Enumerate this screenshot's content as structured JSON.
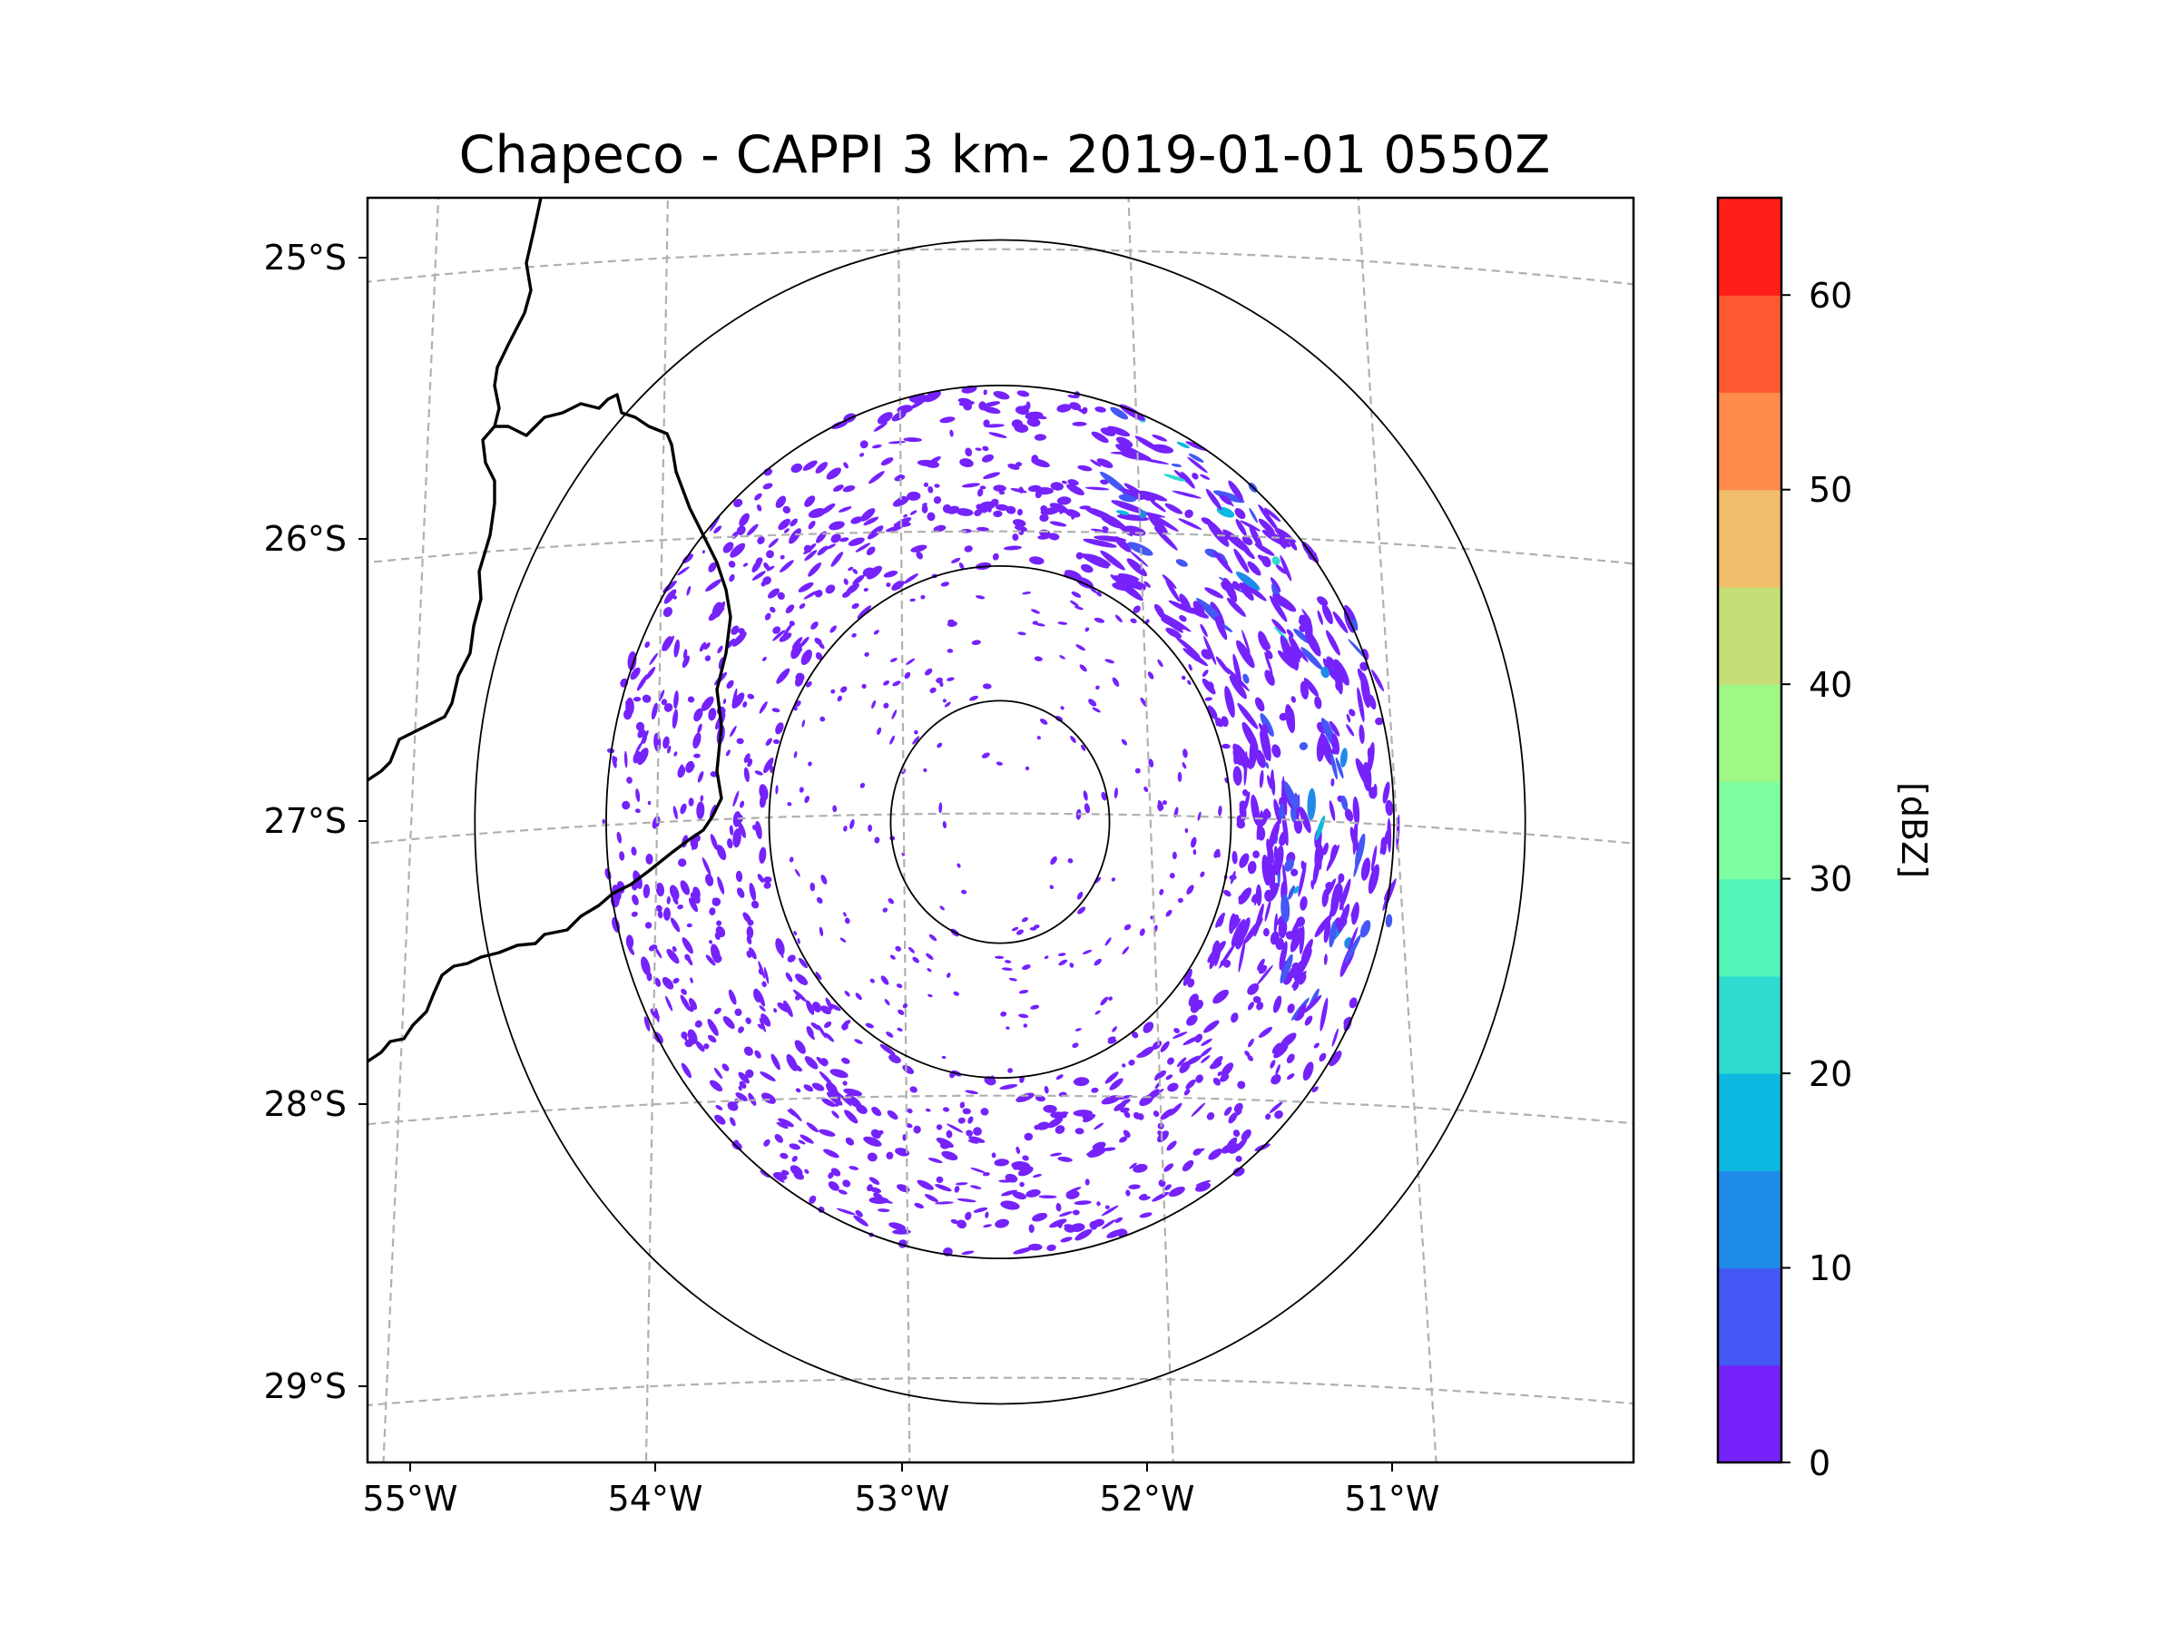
{
  "chart_data": {
    "type": "radar-ppi",
    "title": "Chapeco - CAPPI 3 km- 2019-01-01 0550Z",
    "xlabel": "",
    "ylabel": "",
    "longitude_ticks": [
      {
        "value": -55,
        "label": "55°W"
      },
      {
        "value": -54,
        "label": "54°W"
      },
      {
        "value": -53,
        "label": "53°W"
      },
      {
        "value": -52,
        "label": "52°W"
      },
      {
        "value": -51,
        "label": "51°W"
      }
    ],
    "latitude_ticks": [
      {
        "value": -25,
        "label": "25°S"
      },
      {
        "value": -26,
        "label": "26°S"
      },
      {
        "value": -27,
        "label": "27°S"
      },
      {
        "value": -28,
        "label": "28°S"
      },
      {
        "value": -29,
        "label": "29°S"
      }
    ],
    "xlim": [
      -55.2,
      -50.05
    ],
    "ylim": [
      -29.28,
      -24.78
    ],
    "grid": true,
    "radar_site": {
      "name": "Chapeco",
      "lon": -52.61,
      "lat": -27.03
    },
    "range_rings_deg": [
      0.45,
      0.95,
      1.62,
      2.16
    ],
    "colorbar": {
      "label": "[dBZ]",
      "min": 0,
      "max": 65,
      "step": 5,
      "ticks": [
        0,
        10,
        20,
        30,
        40,
        50,
        60
      ],
      "colors": [
        "#7522fb",
        "#4358f5",
        "#1f8be9",
        "#0cb8df",
        "#2fdacf",
        "#52f4b8",
        "#7efea0",
        "#9ff786",
        "#c5de77",
        "#f0bd6a",
        "#ff8c4c",
        "#ff5933",
        "#ff1f18"
      ]
    }
  },
  "labels": {
    "title": "Chapeco - CAPPI 3 km- 2019-01-01 0550Z",
    "colorbar_label": "[dBZ]",
    "lon": [
      "55°W",
      "54°W",
      "53°W",
      "52°W",
      "51°W"
    ],
    "lat": [
      "25°S",
      "26°S",
      "27°S",
      "28°S",
      "29°S"
    ],
    "cbar_ticks": [
      "0",
      "10",
      "20",
      "30",
      "40",
      "50",
      "60"
    ]
  }
}
